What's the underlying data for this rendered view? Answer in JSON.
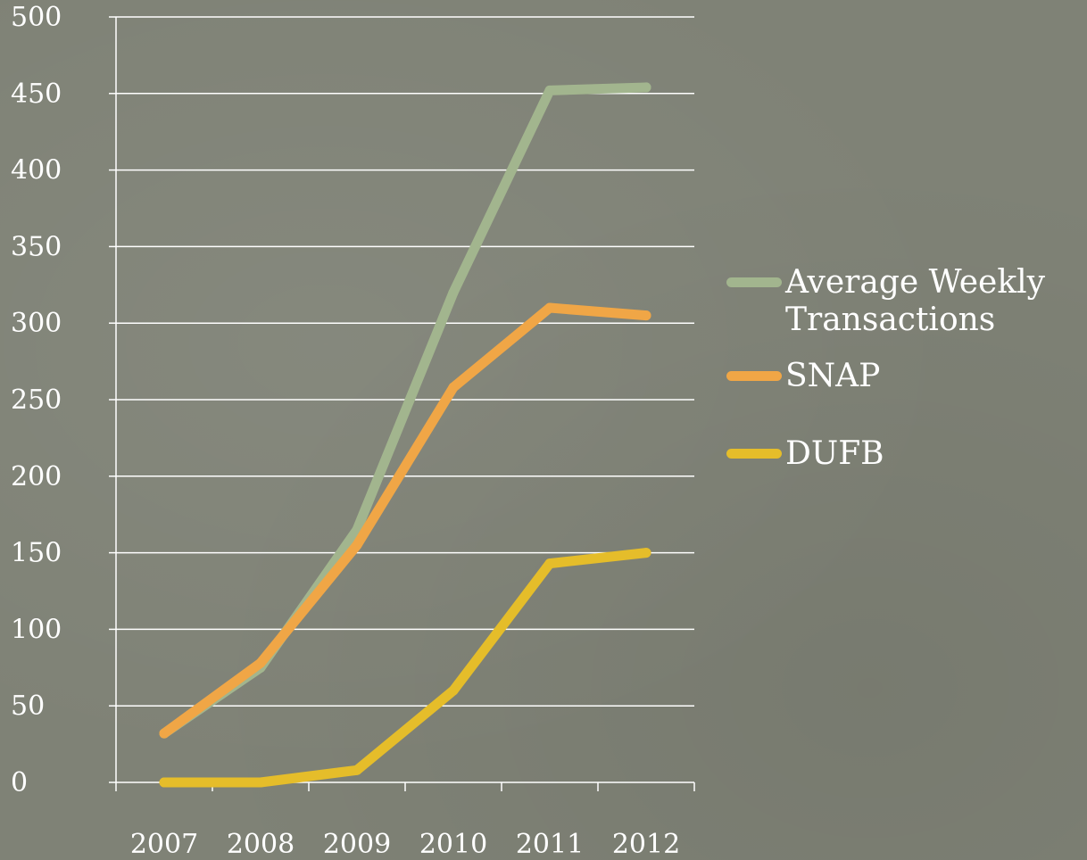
{
  "chart_data": {
    "type": "line",
    "categories": [
      "2007",
      "2008",
      "2009",
      "2010",
      "2011",
      "2012"
    ],
    "ylim": [
      0,
      500
    ],
    "yticks": [
      "0",
      "50",
      "100",
      "150",
      "200",
      "250",
      "300",
      "350",
      "400",
      "450",
      "500"
    ],
    "grid": true,
    "legend_position": "right",
    "series": [
      {
        "name": "Average Weekly Transactions",
        "color": "#a2b58e",
        "values": [
          32,
          75,
          165,
          320,
          452,
          454
        ]
      },
      {
        "name": "SNAP",
        "color": "#f0a646",
        "values": [
          32,
          78,
          155,
          258,
          310,
          305
        ]
      },
      {
        "name": "DUFB",
        "color": "#e5bd2a",
        "values": [
          0,
          0,
          8,
          60,
          143,
          150
        ]
      }
    ]
  }
}
